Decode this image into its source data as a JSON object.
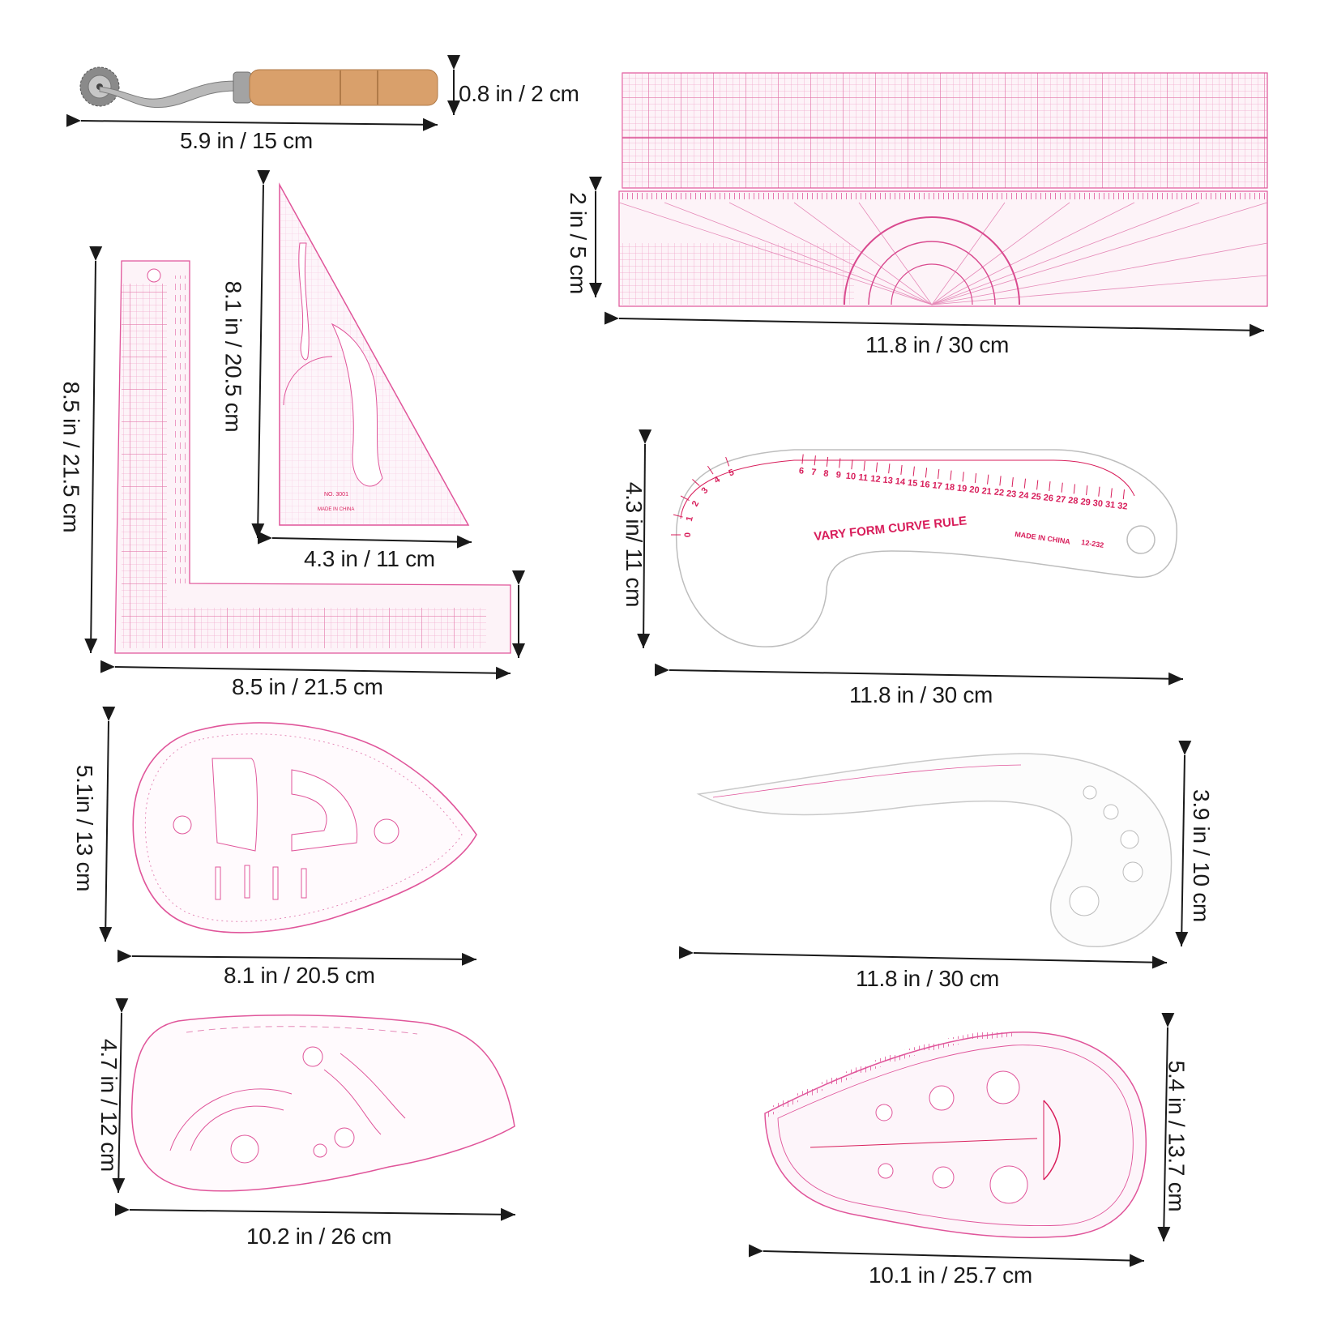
{
  "products": {
    "tracing_wheel": {
      "label": "0.8 in / 2 cm",
      "length_label": "5.9 in / 15 cm"
    },
    "grid_ruler_top": {
      "length_label": "11.8 in / 30 cm",
      "height_label": "2 in / 5 cm"
    },
    "triangle_ruler": {
      "height_label": "8.1 in / 20.5 cm",
      "width_label": "4.3 in / 11 cm",
      "markings": {
        "model": "NO. 3001",
        "origin": "MADE IN CHINA"
      }
    },
    "l_square": {
      "height_label": "8.5 in / 21.5 cm",
      "width_label": "8.5 in / 21.5 cm"
    },
    "vary_form_curve": {
      "height_label": "4.3 in/ 11 cm",
      "width_label": "11.8 in / 30 cm",
      "title": "VARY FORM CURVE RULE",
      "origin": "MADE IN CHINA",
      "model": "12-232",
      "scale": [
        "0",
        "1",
        "2",
        "3",
        "4",
        "5",
        "6",
        "7",
        "8",
        "9",
        "10",
        "11",
        "12",
        "13",
        "14",
        "15",
        "16",
        "17",
        "18",
        "19",
        "20",
        "21",
        "22",
        "23",
        "24",
        "25",
        "26",
        "27",
        "28",
        "29",
        "30",
        "31",
        "32"
      ]
    },
    "teardrop_ruler": {
      "height_label": "5.1in / 13 cm",
      "width_label": "8.1 in / 20.5 cm"
    },
    "french_curve": {
      "height_label": "3.9 in / 10 cm",
      "width_label": "11.8 in / 30 cm"
    },
    "wave_ruler": {
      "height_label": "4.7 in / 12 cm",
      "width_label": "10.2 in / 26 cm"
    },
    "armhole_ruler": {
      "height_label": "5.4 in / 13.7 cm",
      "width_label": "10.1 in / 25.7 cm"
    }
  },
  "colors": {
    "ruler_pink": "#e0559a",
    "ink_red": "#d81e5b",
    "wood": "#d9a06b",
    "metal": "#9a9a9a"
  }
}
